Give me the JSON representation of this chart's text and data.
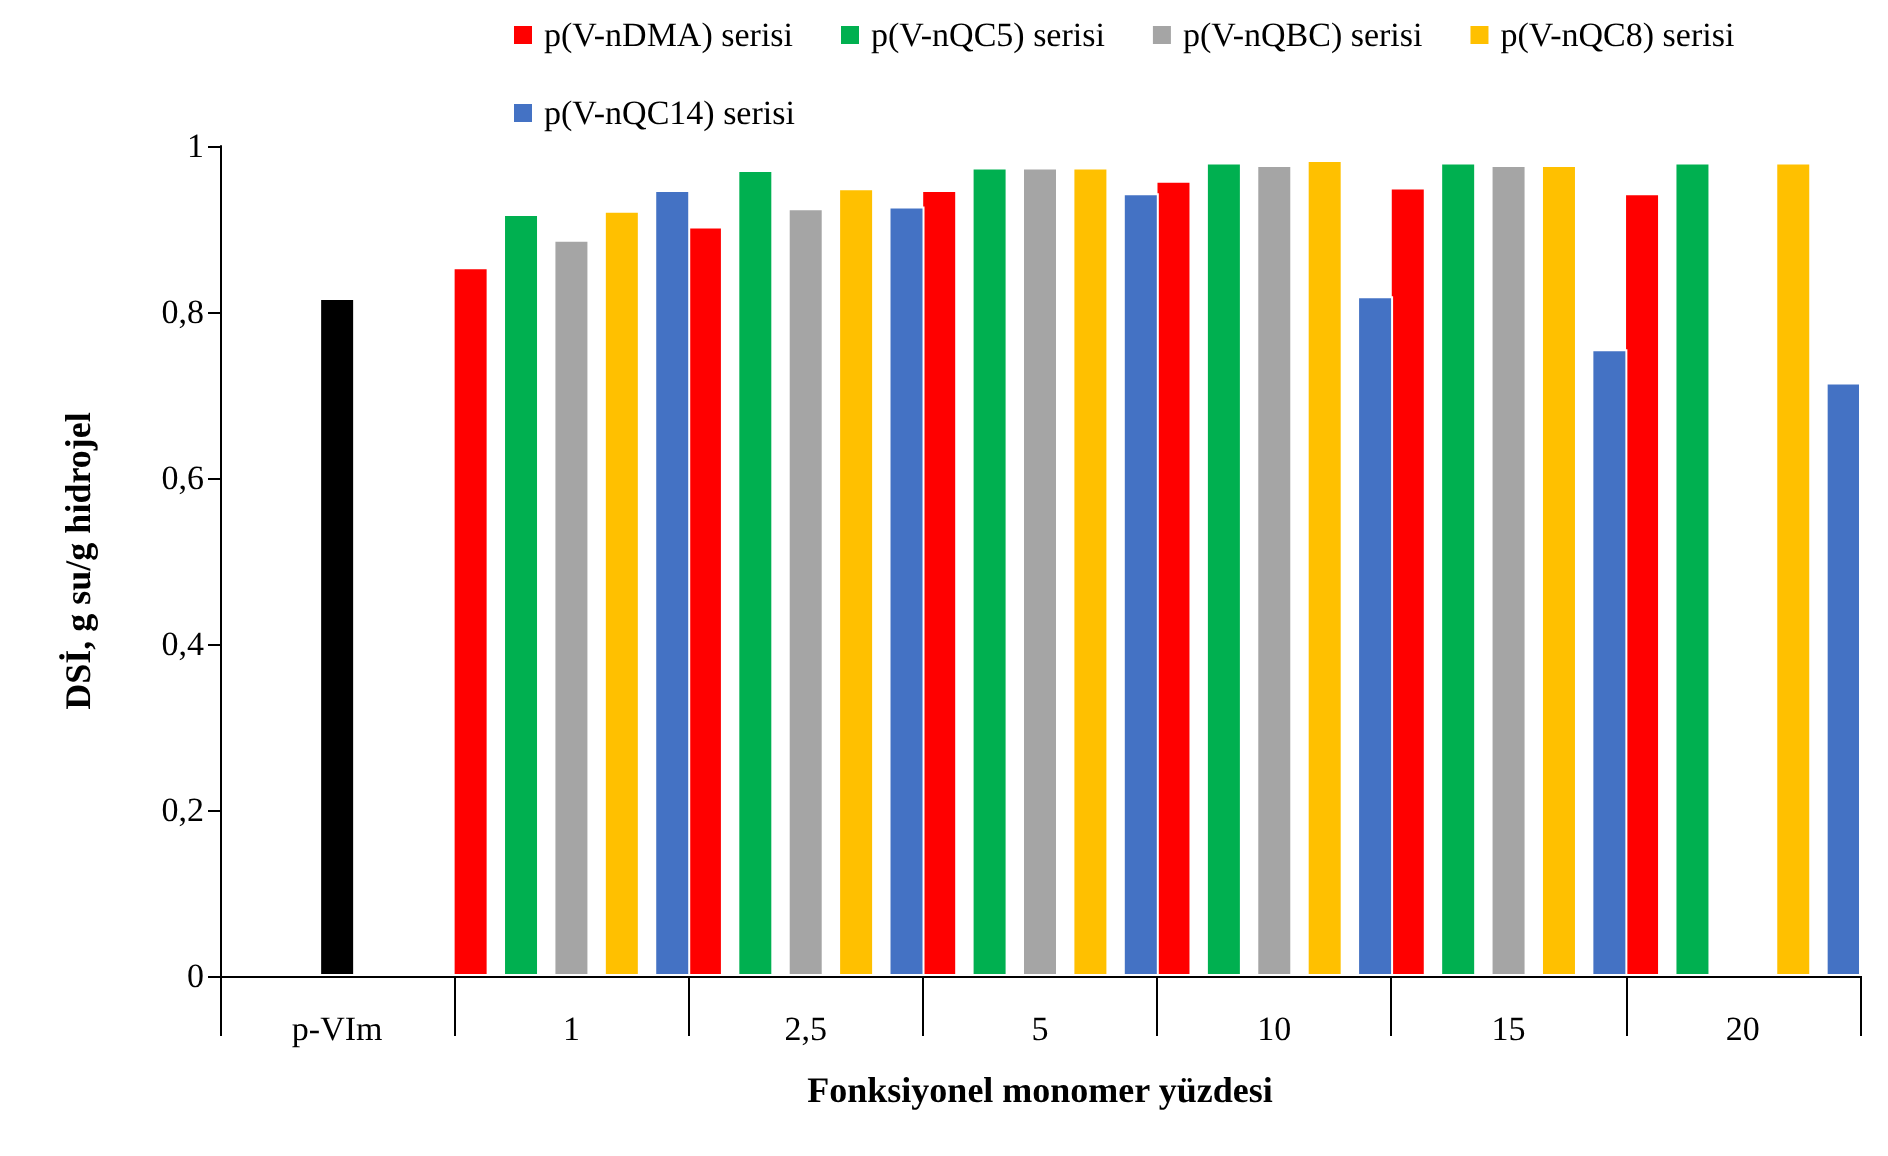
{
  "chart_data": {
    "type": "bar",
    "xlabel": "Fonksiyonel monomer yüzdesi",
    "ylabel": "DSİ, g su/g hidrojel",
    "categories": [
      "p-VIm",
      "1",
      "2,5",
      "5",
      "10",
      "15",
      "20"
    ],
    "series": [
      {
        "color": "#000000",
        "values": [
          0.817,
          null,
          null,
          null,
          null,
          null,
          null
        ]
      },
      {
        "name": "p(V-nDMA) serisi",
        "color": "#ff0000",
        "values": [
          null,
          0.854,
          0.903,
          0.947,
          0.958,
          0.95,
          0.943
        ]
      },
      {
        "name": "p(V-nQC5) serisi",
        "color": "#00b050",
        "values": [
          null,
          0.918,
          0.971,
          0.974,
          0.98,
          0.98,
          0.98
        ]
      },
      {
        "name": "p(V-nQBC) serisi",
        "color": "#a5a5a5",
        "values": [
          null,
          0.887,
          0.925,
          0.974,
          0.977,
          0.977,
          null
        ]
      },
      {
        "name": "p(V-nQC8) serisi",
        "color": "#ffc000",
        "values": [
          null,
          0.922,
          0.949,
          0.974,
          0.983,
          0.977,
          0.98
        ]
      },
      {
        "name": "p(V-nQC14) serisi",
        "color": "#4472c4",
        "values": [
          null,
          0.947,
          0.927,
          0.943,
          0.819,
          0.755,
          0.715
        ]
      }
    ],
    "ylim": [
      0,
      1
    ],
    "yticks": [
      0,
      {
        "value": 0.2,
        "label": "0,2"
      },
      {
        "value": 0.4,
        "label": "0,4"
      },
      {
        "value": 0.6,
        "label": "0,6"
      },
      {
        "value": 0.8,
        "label": "0,8"
      },
      1
    ],
    "grid": false,
    "legend": "top"
  }
}
